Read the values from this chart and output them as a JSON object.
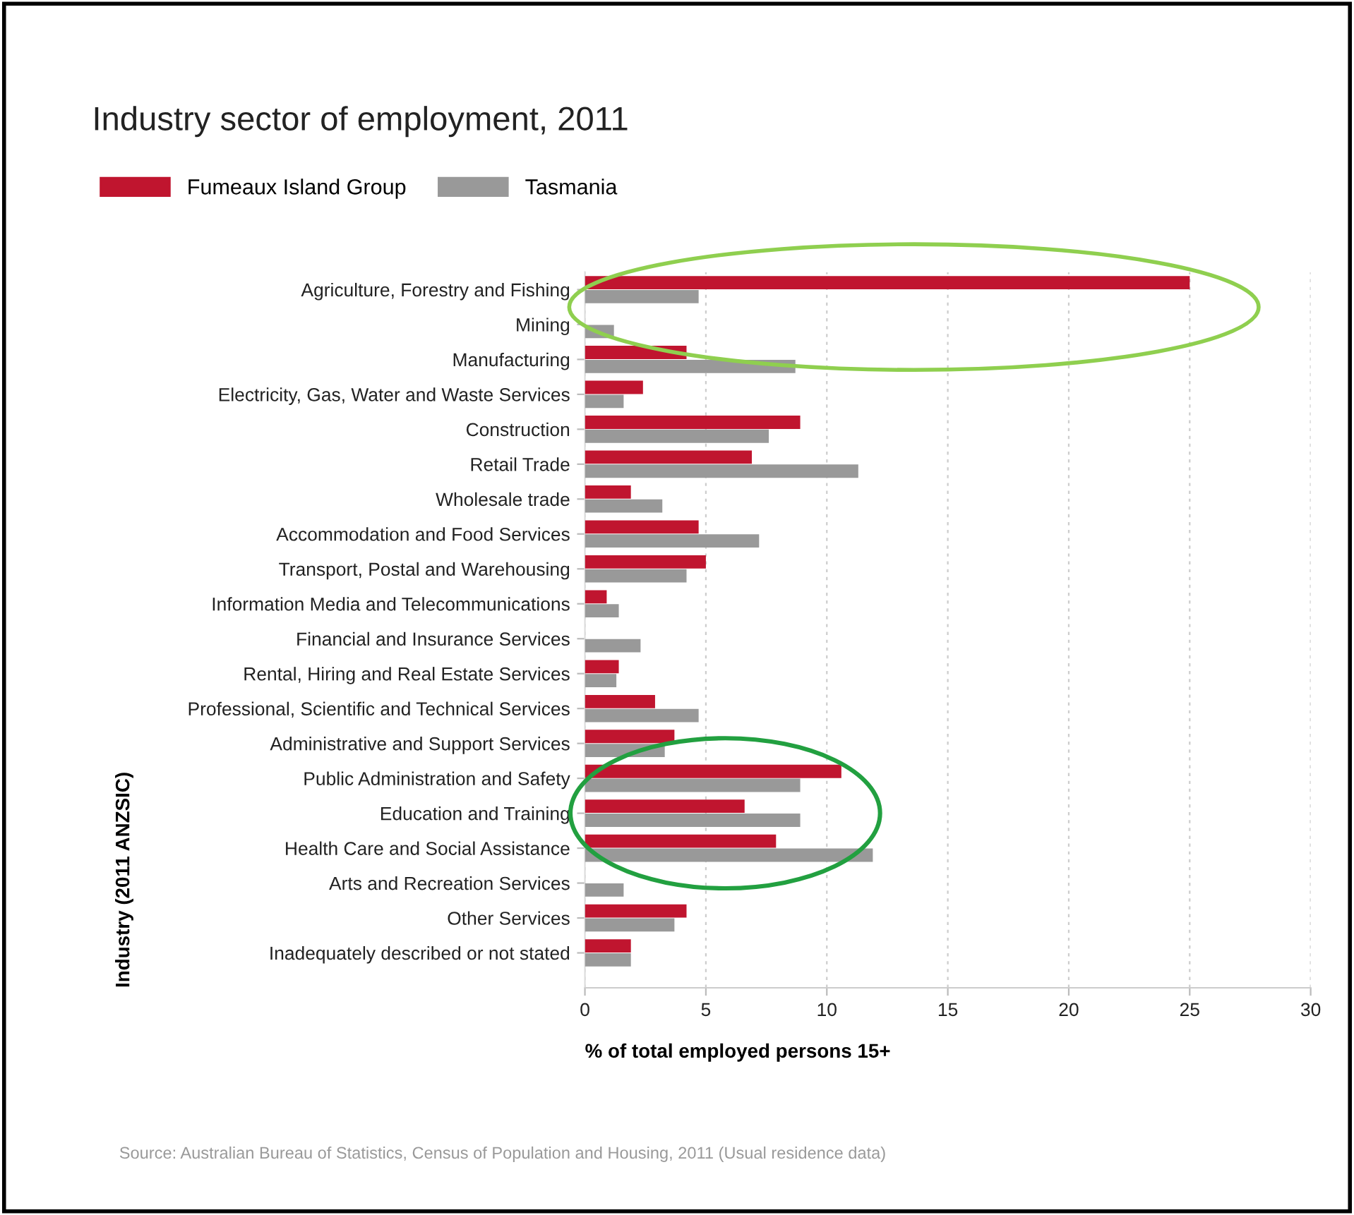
{
  "chart_data": {
    "type": "bar",
    "orientation": "horizontal",
    "title": "Industry sector of employment, 2011",
    "categories": [
      "Agriculture, Forestry and Fishing",
      "Mining",
      "Manufacturing",
      "Electricity, Gas, Water and Waste Services",
      "Construction",
      "Retail Trade",
      "Wholesale trade",
      "Accommodation and Food Services",
      "Transport, Postal and Warehousing",
      "Information Media and Telecommunications",
      "Financial and Insurance Services",
      "Rental, Hiring and Real Estate Services",
      "Professional, Scientific and Technical Services",
      "Administrative and Support Services",
      "Public Administration and Safety",
      "Education and Training",
      "Health Care and Social Assistance",
      "Arts and Recreation Services",
      "Other Services",
      "Inadequately described or not stated"
    ],
    "series": [
      {
        "name": "Fumeaux Island Group",
        "color": "#c0152f",
        "values": [
          25,
          0,
          4.2,
          2.4,
          8.9,
          6.9,
          1.9,
          4.7,
          5.0,
          0.9,
          0,
          1.4,
          2.9,
          3.7,
          10.6,
          6.6,
          7.9,
          0,
          4.2,
          1.9
        ]
      },
      {
        "name": "Tasmania",
        "color": "#999999",
        "values": [
          4.7,
          1.2,
          8.7,
          1.6,
          7.6,
          11.3,
          3.2,
          7.2,
          4.2,
          1.4,
          2.3,
          1.3,
          4.7,
          3.3,
          8.9,
          8.9,
          11.9,
          1.6,
          3.7,
          1.9
        ]
      }
    ],
    "xlim": [
      0,
      30
    ],
    "xticks": [
      0,
      5,
      10,
      15,
      20,
      25,
      30
    ],
    "xlabel": "% of total employed persons 15+",
    "ylabel": "Industry (2011 ANZSIC)",
    "grid": "x",
    "legend": "top left",
    "annotations": [
      "Source: Australian Bureau of Statistics, Census of Population and Housing, 2011 (Usual residence data)"
    ]
  }
}
